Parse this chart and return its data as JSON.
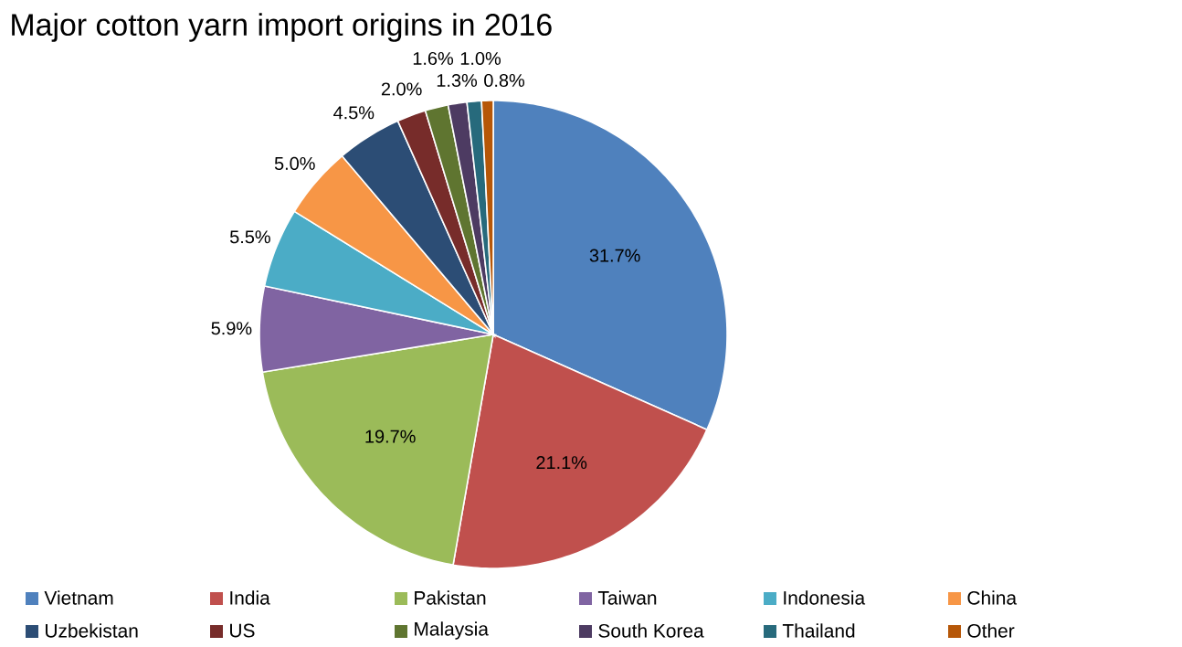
{
  "chart_data": {
    "type": "pie",
    "title": "Major cotton yarn import origins in 2016",
    "categories": [
      "Vietnam",
      "India",
      "Pakistan",
      "Taiwan",
      "Indonesia",
      "China",
      "Uzbekistan",
      "US",
      "Malaysia",
      "South Korea",
      "Thailand",
      "Other"
    ],
    "values": [
      31.7,
      21.1,
      19.7,
      5.9,
      5.5,
      5.0,
      4.5,
      2.0,
      1.6,
      1.3,
      1.0,
      0.8
    ],
    "colors": [
      "#4f81bd",
      "#c0504d",
      "#9bbb59",
      "#8064a2",
      "#4bacc6",
      "#f79646",
      "#2c4d75",
      "#772c2a",
      "#5f7530",
      "#4d3b62",
      "#276a7c",
      "#b65708"
    ],
    "value_labels": [
      "31.7%",
      "21.1%",
      "19.7%",
      "5.9%",
      "5.5%",
      "5.0%",
      "4.5%",
      "2.0%",
      "1.6%",
      "1.3%",
      "1.0%",
      "0.8%"
    ],
    "data_labels": true,
    "legend": "bottom"
  }
}
